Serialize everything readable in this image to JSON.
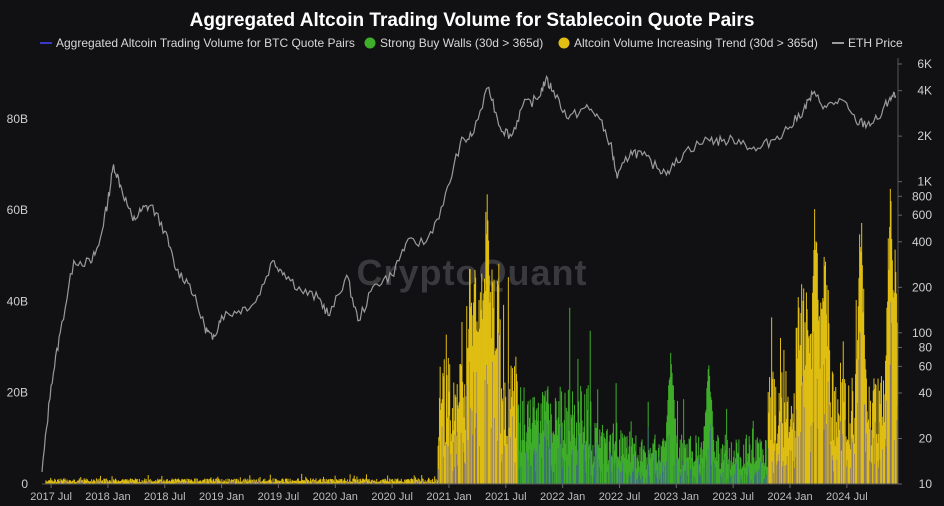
{
  "chart_data": {
    "type": "bar",
    "title": "Aggregated Altcoin Trading Volume for Stablecoin Quote Pairs",
    "watermark": "CryptoQuant",
    "legend": [
      {
        "name": "Aggregated Altcoin Trading Volume for BTC Quote Pairs",
        "marker": "line",
        "color": "#3b38c9"
      },
      {
        "name": "Strong Buy Walls (30d > 365d)",
        "marker": "dot",
        "color": "#3fae2a"
      },
      {
        "name": "Altcoin Volume Increasing Trend (30d > 365d)",
        "marker": "dot",
        "color": "#e0bf12"
      },
      {
        "name": "ETH Price",
        "marker": "line",
        "color": "#9a9a9a"
      }
    ],
    "legend_placement": "top",
    "x_ticks": [
      "2017 Jul",
      "2018 Jan",
      "2018 Jul",
      "2019 Jan",
      "2019 Jul",
      "2020 Jan",
      "2020 Jul",
      "2021 Jan",
      "2021 Jul",
      "2022 Jan",
      "2022 Jul",
      "2023 Jan",
      "2023 Jul",
      "2024 Jan",
      "2024 Jul"
    ],
    "y_left": {
      "ticks": [
        "0",
        "20B",
        "40B",
        "60B",
        "80B"
      ],
      "range": [
        0,
        92
      ]
    },
    "y_right": {
      "scale": "log",
      "ticks": [
        "10",
        "20",
        "40",
        "60",
        "80",
        "100",
        "200",
        "400",
        "600",
        "800",
        "1K",
        "2K",
        "4K",
        "6K"
      ],
      "range": [
        10,
        6000
      ]
    },
    "x_range": [
      2017.42,
      2024.95
    ],
    "grid": false,
    "volume_segments": [
      {
        "from": 2017.45,
        "to": 2020.9,
        "base_b": 0.8,
        "color": "#e0bf12"
      },
      {
        "from": 2020.9,
        "to": 2021.6,
        "base_b": 18,
        "color": "#e0bf12"
      },
      {
        "from": 2021.6,
        "to": 2022.25,
        "base_b": 14,
        "color": "#3fae2a"
      },
      {
        "from": 2022.25,
        "to": 2022.6,
        "base_b": 9,
        "color": "#3fae2a"
      },
      {
        "from": 2022.6,
        "to": 2023.8,
        "base_b": 7,
        "color": "#3fae2a"
      },
      {
        "from": 2023.8,
        "to": 2024.95,
        "base_b": 16,
        "color": "#e0bf12"
      }
    ],
    "volume_peaks": [
      {
        "x": 2021.33,
        "value_b": 72
      },
      {
        "x": 2021.1,
        "value_b": 28
      },
      {
        "x": 2021.55,
        "value_b": 22
      },
      {
        "x": 2022.95,
        "value_b": 34
      },
      {
        "x": 2023.28,
        "value_b": 30
      },
      {
        "x": 2024.22,
        "value_b": 68
      },
      {
        "x": 2024.3,
        "value_b": 57
      },
      {
        "x": 2024.62,
        "value_b": 66
      },
      {
        "x": 2024.88,
        "value_b": 77
      },
      {
        "x": 2024.92,
        "value_b": 52
      }
    ],
    "eth_price": [
      {
        "x": 2017.42,
        "y": 12
      },
      {
        "x": 2017.5,
        "y": 45
      },
      {
        "x": 2017.58,
        "y": 100
      },
      {
        "x": 2017.7,
        "y": 300
      },
      {
        "x": 2017.85,
        "y": 290
      },
      {
        "x": 2017.92,
        "y": 380
      },
      {
        "x": 2018.0,
        "y": 750
      },
      {
        "x": 2018.05,
        "y": 1300
      },
      {
        "x": 2018.12,
        "y": 900
      },
      {
        "x": 2018.22,
        "y": 550
      },
      {
        "x": 2018.3,
        "y": 650
      },
      {
        "x": 2018.38,
        "y": 700
      },
      {
        "x": 2018.5,
        "y": 470
      },
      {
        "x": 2018.6,
        "y": 260
      },
      {
        "x": 2018.72,
        "y": 210
      },
      {
        "x": 2018.85,
        "y": 110
      },
      {
        "x": 2018.92,
        "y": 90
      },
      {
        "x": 2019.0,
        "y": 130
      },
      {
        "x": 2019.15,
        "y": 140
      },
      {
        "x": 2019.3,
        "y": 160
      },
      {
        "x": 2019.45,
        "y": 300
      },
      {
        "x": 2019.55,
        "y": 250
      },
      {
        "x": 2019.7,
        "y": 190
      },
      {
        "x": 2019.85,
        "y": 170
      },
      {
        "x": 2019.95,
        "y": 130
      },
      {
        "x": 2020.1,
        "y": 240
      },
      {
        "x": 2020.2,
        "y": 120
      },
      {
        "x": 2020.35,
        "y": 210
      },
      {
        "x": 2020.5,
        "y": 240
      },
      {
        "x": 2020.62,
        "y": 390
      },
      {
        "x": 2020.8,
        "y": 400
      },
      {
        "x": 2020.95,
        "y": 700
      },
      {
        "x": 2021.1,
        "y": 1800
      },
      {
        "x": 2021.2,
        "y": 2000
      },
      {
        "x": 2021.35,
        "y": 4200
      },
      {
        "x": 2021.45,
        "y": 2300
      },
      {
        "x": 2021.55,
        "y": 2000
      },
      {
        "x": 2021.65,
        "y": 3200
      },
      {
        "x": 2021.78,
        "y": 3500
      },
      {
        "x": 2021.85,
        "y": 4700
      },
      {
        "x": 2021.92,
        "y": 4000
      },
      {
        "x": 2022.05,
        "y": 2600
      },
      {
        "x": 2022.2,
        "y": 3100
      },
      {
        "x": 2022.3,
        "y": 2800
      },
      {
        "x": 2022.42,
        "y": 1800
      },
      {
        "x": 2022.48,
        "y": 1050
      },
      {
        "x": 2022.6,
        "y": 1600
      },
      {
        "x": 2022.7,
        "y": 1500
      },
      {
        "x": 2022.85,
        "y": 1200
      },
      {
        "x": 2022.95,
        "y": 1200
      },
      {
        "x": 2023.08,
        "y": 1600
      },
      {
        "x": 2023.28,
        "y": 1900
      },
      {
        "x": 2023.4,
        "y": 1850
      },
      {
        "x": 2023.55,
        "y": 1900
      },
      {
        "x": 2023.7,
        "y": 1600
      },
      {
        "x": 2023.85,
        "y": 1900
      },
      {
        "x": 2024.0,
        "y": 2300
      },
      {
        "x": 2024.12,
        "y": 3000
      },
      {
        "x": 2024.2,
        "y": 3800
      },
      {
        "x": 2024.32,
        "y": 3100
      },
      {
        "x": 2024.45,
        "y": 3500
      },
      {
        "x": 2024.58,
        "y": 2500
      },
      {
        "x": 2024.68,
        "y": 2400
      },
      {
        "x": 2024.78,
        "y": 2600
      },
      {
        "x": 2024.88,
        "y": 3600
      },
      {
        "x": 2024.93,
        "y": 3700
      }
    ]
  }
}
